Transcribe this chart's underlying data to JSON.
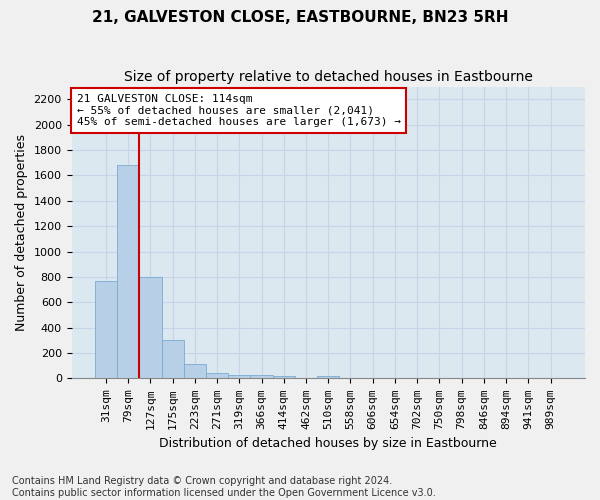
{
  "title": "21, GALVESTON CLOSE, EASTBOURNE, BN23 5RH",
  "subtitle": "Size of property relative to detached houses in Eastbourne",
  "xlabel": "Distribution of detached houses by size in Eastbourne",
  "ylabel": "Number of detached properties",
  "bar_values": [
    770,
    1680,
    800,
    300,
    110,
    45,
    30,
    25,
    20,
    0,
    20,
    0,
    0,
    0,
    0,
    0,
    0,
    0,
    0,
    0,
    0
  ],
  "categories": [
    "31sqm",
    "79sqm",
    "127sqm",
    "175sqm",
    "223sqm",
    "271sqm",
    "319sqm",
    "366sqm",
    "414sqm",
    "462sqm",
    "510sqm",
    "558sqm",
    "606sqm",
    "654sqm",
    "702sqm",
    "750sqm",
    "798sqm",
    "846sqm",
    "894sqm",
    "941sqm",
    "989sqm"
  ],
  "bar_color": "#b8cfe8",
  "bar_edge_color": "#7aaad0",
  "vline_color": "#cc0000",
  "vline_x_index": 2,
  "annotation_text": "21 GALVESTON CLOSE: 114sqm\n← 55% of detached houses are smaller (2,041)\n45% of semi-detached houses are larger (1,673) →",
  "annotation_box_color": "#ffffff",
  "annotation_box_edge": "#cc0000",
  "ylim": [
    0,
    2300
  ],
  "yticks": [
    0,
    200,
    400,
    600,
    800,
    1000,
    1200,
    1400,
    1600,
    1800,
    2000,
    2200
  ],
  "grid_color": "#c8d4e8",
  "bg_color": "#dce8f0",
  "fig_bg_color": "#f0f0f0",
  "footer": "Contains HM Land Registry data © Crown copyright and database right 2024.\nContains public sector information licensed under the Open Government Licence v3.0.",
  "title_fontsize": 11,
  "subtitle_fontsize": 10,
  "axis_label_fontsize": 9,
  "tick_fontsize": 8,
  "annotation_fontsize": 8,
  "footer_fontsize": 7
}
